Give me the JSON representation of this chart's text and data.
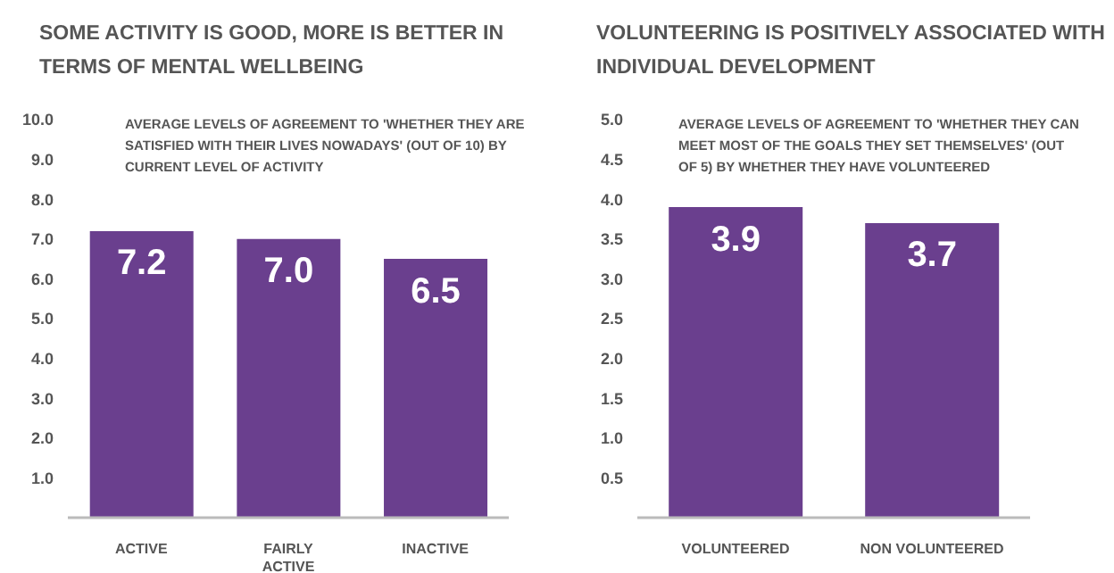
{
  "chart_data": [
    {
      "type": "bar",
      "title": "SOME ACTIVITY IS GOOD, MORE IS BETTER IN TERMS OF MENTAL WELLBEING",
      "subtitle": "AVERAGE LEVELS OF AGREEMENT TO 'WHETHER THEY ARE SATISFIED WITH THEIR LIVES NOWADAYS' (OUT OF 10) BY CURRENT LEVEL OF ACTIVITY",
      "categories": [
        "ACTIVE",
        "FAIRLY ACTIVE",
        "INACTIVE"
      ],
      "values": [
        7.2,
        7.0,
        6.5
      ],
      "value_labels": [
        "7.2",
        "7.0",
        "6.5"
      ],
      "color": "#6a3f8e",
      "ylim": [
        0,
        10
      ],
      "yticks": [
        {
          "value": 1,
          "label": "1.0"
        },
        {
          "value": 2,
          "label": "2.0"
        },
        {
          "value": 3,
          "label": "3.0"
        },
        {
          "value": 4,
          "label": "4.0"
        },
        {
          "value": 5,
          "label": "5.0"
        },
        {
          "value": 6,
          "label": "6.0"
        },
        {
          "value": 7,
          "label": "7.0"
        },
        {
          "value": 8,
          "label": "8.0"
        },
        {
          "value": 9,
          "label": "9.0"
        },
        {
          "value": 10,
          "label": "10.0"
        }
      ]
    },
    {
      "type": "bar",
      "title": "VOLUNTEERING IS POSITIVELY ASSOCIATED WITH INDIVIDUAL DEVELOPMENT",
      "subtitle": "AVERAGE LEVELS OF AGREEMENT TO 'WHETHER THEY CAN MEET MOST OF THE GOALS THEY SET THEMSELVES' (OUT OF 5) BY WHETHER THEY HAVE VOLUNTEERED",
      "categories": [
        "VOLUNTEERED",
        "NON VOLUNTEERED"
      ],
      "values": [
        3.9,
        3.7
      ],
      "value_labels": [
        "3.9",
        "3.7"
      ],
      "color": "#6a3f8e",
      "ylim": [
        0,
        5
      ],
      "yticks": [
        {
          "value": 0.5,
          "label": "0.5"
        },
        {
          "value": 1,
          "label": "1.0"
        },
        {
          "value": 1.5,
          "label": "1.5"
        },
        {
          "value": 2,
          "label": "2.0"
        },
        {
          "value": 2.5,
          "label": "2.5"
        },
        {
          "value": 3,
          "label": "3.0"
        },
        {
          "value": 3.5,
          "label": "3.5"
        },
        {
          "value": 4,
          "label": "4.0"
        },
        {
          "value": 4.5,
          "label": "4.5"
        },
        {
          "value": 5,
          "label": "5.0"
        }
      ]
    }
  ]
}
